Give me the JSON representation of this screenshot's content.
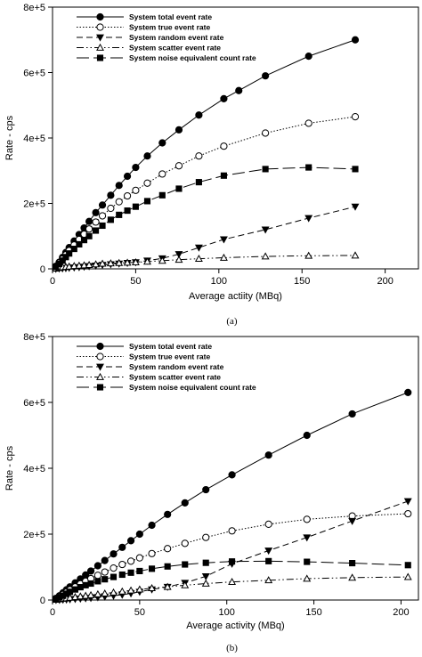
{
  "chart_data": [
    {
      "type": "line",
      "panel_label": "(a)",
      "xlabel": "Average actiity (MBq)",
      "ylabel": "Rate - cps",
      "xlim": [
        0,
        220
      ],
      "ylim": [
        0,
        800000
      ],
      "xticks": [
        0,
        50,
        100,
        150,
        200
      ],
      "yticks": [
        0,
        200000,
        400000,
        600000,
        800000
      ],
      "xtick_labels": [
        "0",
        "50",
        "100",
        "150",
        "200"
      ],
      "ytick_labels": [
        "0",
        "2e+5",
        "4e+5",
        "6e+5",
        "8e+5"
      ],
      "legend_position": "top-left",
      "series": [
        {
          "name": "System total event rate",
          "marker": "circle-filled",
          "dash": "solid",
          "x": [
            2,
            4,
            6,
            8,
            10,
            13,
            16,
            19,
            22,
            26,
            30,
            35,
            40,
            45,
            50,
            57,
            66,
            76,
            88,
            103,
            112,
            128,
            154,
            182
          ],
          "y": [
            8000,
            20000,
            35000,
            50000,
            65000,
            85000,
            105000,
            125000,
            145000,
            172000,
            195000,
            225000,
            255000,
            283000,
            310000,
            345000,
            385000,
            425000,
            470000,
            520000,
            545000,
            590000,
            650000,
            700000
          ]
        },
        {
          "name": "System true event rate",
          "marker": "circle-open",
          "dash": "dotted",
          "x": [
            2,
            4,
            6,
            8,
            10,
            13,
            16,
            19,
            22,
            26,
            30,
            35,
            40,
            45,
            50,
            57,
            66,
            76,
            88,
            103,
            128,
            154,
            182
          ],
          "y": [
            7000,
            18000,
            30000,
            43000,
            56000,
            73000,
            90000,
            106000,
            122000,
            143000,
            162000,
            185000,
            205000,
            223000,
            240000,
            262000,
            290000,
            315000,
            345000,
            375000,
            415000,
            445000,
            465000
          ]
        },
        {
          "name": "System random event rate",
          "marker": "triangle-down-filled",
          "dash": "dashed",
          "x": [
            2,
            4,
            6,
            8,
            10,
            13,
            16,
            19,
            22,
            26,
            30,
            35,
            40,
            45,
            50,
            57,
            66,
            76,
            88,
            103,
            128,
            154,
            182
          ],
          "y": [
            0,
            1000,
            1500,
            2000,
            3000,
            4000,
            5000,
            6500,
            8000,
            10000,
            12000,
            14000,
            16000,
            18000,
            20000,
            25000,
            32000,
            45000,
            65000,
            90000,
            120000,
            155000,
            190000
          ]
        },
        {
          "name": "System scatter event rate",
          "marker": "triangle-up-open",
          "dash": "dashdotdot",
          "x": [
            2,
            4,
            6,
            8,
            10,
            13,
            16,
            19,
            22,
            26,
            30,
            35,
            40,
            45,
            50,
            57,
            66,
            76,
            88,
            103,
            128,
            154,
            182
          ],
          "y": [
            1000,
            3000,
            5000,
            6000,
            7000,
            9000,
            10000,
            11000,
            12000,
            14000,
            16000,
            17000,
            18000,
            19000,
            20000,
            22000,
            25000,
            28000,
            31000,
            34000,
            38000,
            40000,
            41000
          ]
        },
        {
          "name": "System noise equivalent count rate",
          "marker": "square-filled",
          "dash": "longdash",
          "x": [
            2,
            4,
            6,
            8,
            10,
            13,
            16,
            19,
            22,
            26,
            30,
            35,
            40,
            45,
            50,
            57,
            66,
            76,
            88,
            103,
            128,
            154,
            182
          ],
          "y": [
            6000,
            15000,
            25000,
            36000,
            47000,
            61000,
            75000,
            88000,
            100000,
            117000,
            132000,
            150000,
            165000,
            178000,
            190000,
            207000,
            225000,
            245000,
            265000,
            285000,
            305000,
            310000,
            305000
          ]
        }
      ]
    },
    {
      "type": "line",
      "panel_label": "(b)",
      "xlabel": "Average activity (MBq)",
      "ylabel": "Rate - cps",
      "xlim": [
        0,
        210
      ],
      "ylim": [
        0,
        800000
      ],
      "xticks": [
        0,
        50,
        100,
        150,
        200
      ],
      "yticks": [
        0,
        200000,
        400000,
        600000,
        800000
      ],
      "xtick_labels": [
        "0",
        "50",
        "100",
        "150",
        "200"
      ],
      "ytick_labels": [
        "0",
        "2e+5",
        "4e+5",
        "6e+5",
        "8e+5"
      ],
      "legend_position": "top-left",
      "series": [
        {
          "name": "System total event rate",
          "marker": "circle-filled",
          "dash": "solid",
          "x": [
            2,
            4,
            6,
            8,
            10,
            13,
            16,
            19,
            22,
            26,
            30,
            35,
            40,
            45,
            50,
            57,
            66,
            76,
            88,
            103,
            124,
            146,
            172,
            204
          ],
          "y": [
            5000,
            13000,
            22000,
            31000,
            40000,
            52000,
            64000,
            76000,
            88000,
            104000,
            120000,
            140000,
            160000,
            180000,
            200000,
            227000,
            260000,
            295000,
            335000,
            380000,
            440000,
            500000,
            565000,
            630000
          ]
        },
        {
          "name": "System true event rate",
          "marker": "circle-open",
          "dash": "dotted",
          "x": [
            2,
            4,
            6,
            8,
            10,
            13,
            16,
            19,
            22,
            26,
            30,
            35,
            40,
            45,
            50,
            57,
            66,
            76,
            88,
            103,
            124,
            146,
            172,
            204
          ],
          "y": [
            4000,
            10000,
            17000,
            24000,
            31000,
            40000,
            49000,
            57000,
            65000,
            75000,
            85000,
            97000,
            108000,
            118000,
            128000,
            141000,
            156000,
            172000,
            190000,
            210000,
            230000,
            245000,
            255000,
            262000
          ]
        },
        {
          "name": "System random event rate",
          "marker": "triangle-down-filled",
          "dash": "dashed",
          "x": [
            2,
            4,
            6,
            8,
            10,
            13,
            16,
            19,
            22,
            26,
            30,
            35,
            40,
            45,
            50,
            57,
            66,
            76,
            88,
            103,
            124,
            146,
            172,
            204
          ],
          "y": [
            0,
            500,
            1000,
            1500,
            2000,
            3000,
            4000,
            5000,
            6000,
            8000,
            10000,
            13000,
            16000,
            20000,
            25000,
            32000,
            40000,
            52000,
            72000,
            110000,
            150000,
            190000,
            240000,
            300000
          ]
        },
        {
          "name": "System scatter event rate",
          "marker": "triangle-up-open",
          "dash": "dashdotdot",
          "x": [
            2,
            4,
            6,
            8,
            10,
            13,
            16,
            19,
            22,
            26,
            30,
            35,
            40,
            45,
            50,
            57,
            66,
            76,
            88,
            103,
            124,
            146,
            172,
            204
          ],
          "y": [
            1000,
            2500,
            4000,
            5500,
            7000,
            9000,
            11000,
            13000,
            15000,
            17500,
            20000,
            23000,
            26000,
            29000,
            32000,
            36000,
            40000,
            45000,
            50000,
            55000,
            60000,
            65000,
            68000,
            70000
          ]
        },
        {
          "name": "System noise equivalent count rate",
          "marker": "square-filled",
          "dash": "longdash",
          "x": [
            2,
            4,
            6,
            8,
            10,
            13,
            16,
            19,
            22,
            26,
            30,
            35,
            40,
            45,
            50,
            57,
            66,
            76,
            88,
            103,
            124,
            146,
            172,
            204
          ],
          "y": [
            3000,
            8000,
            13000,
            19000,
            25000,
            32000,
            39000,
            45000,
            50000,
            57000,
            63000,
            70000,
            77000,
            83000,
            88000,
            95000,
            102000,
            108000,
            113000,
            117000,
            118000,
            116000,
            112000,
            106000
          ]
        }
      ]
    }
  ]
}
